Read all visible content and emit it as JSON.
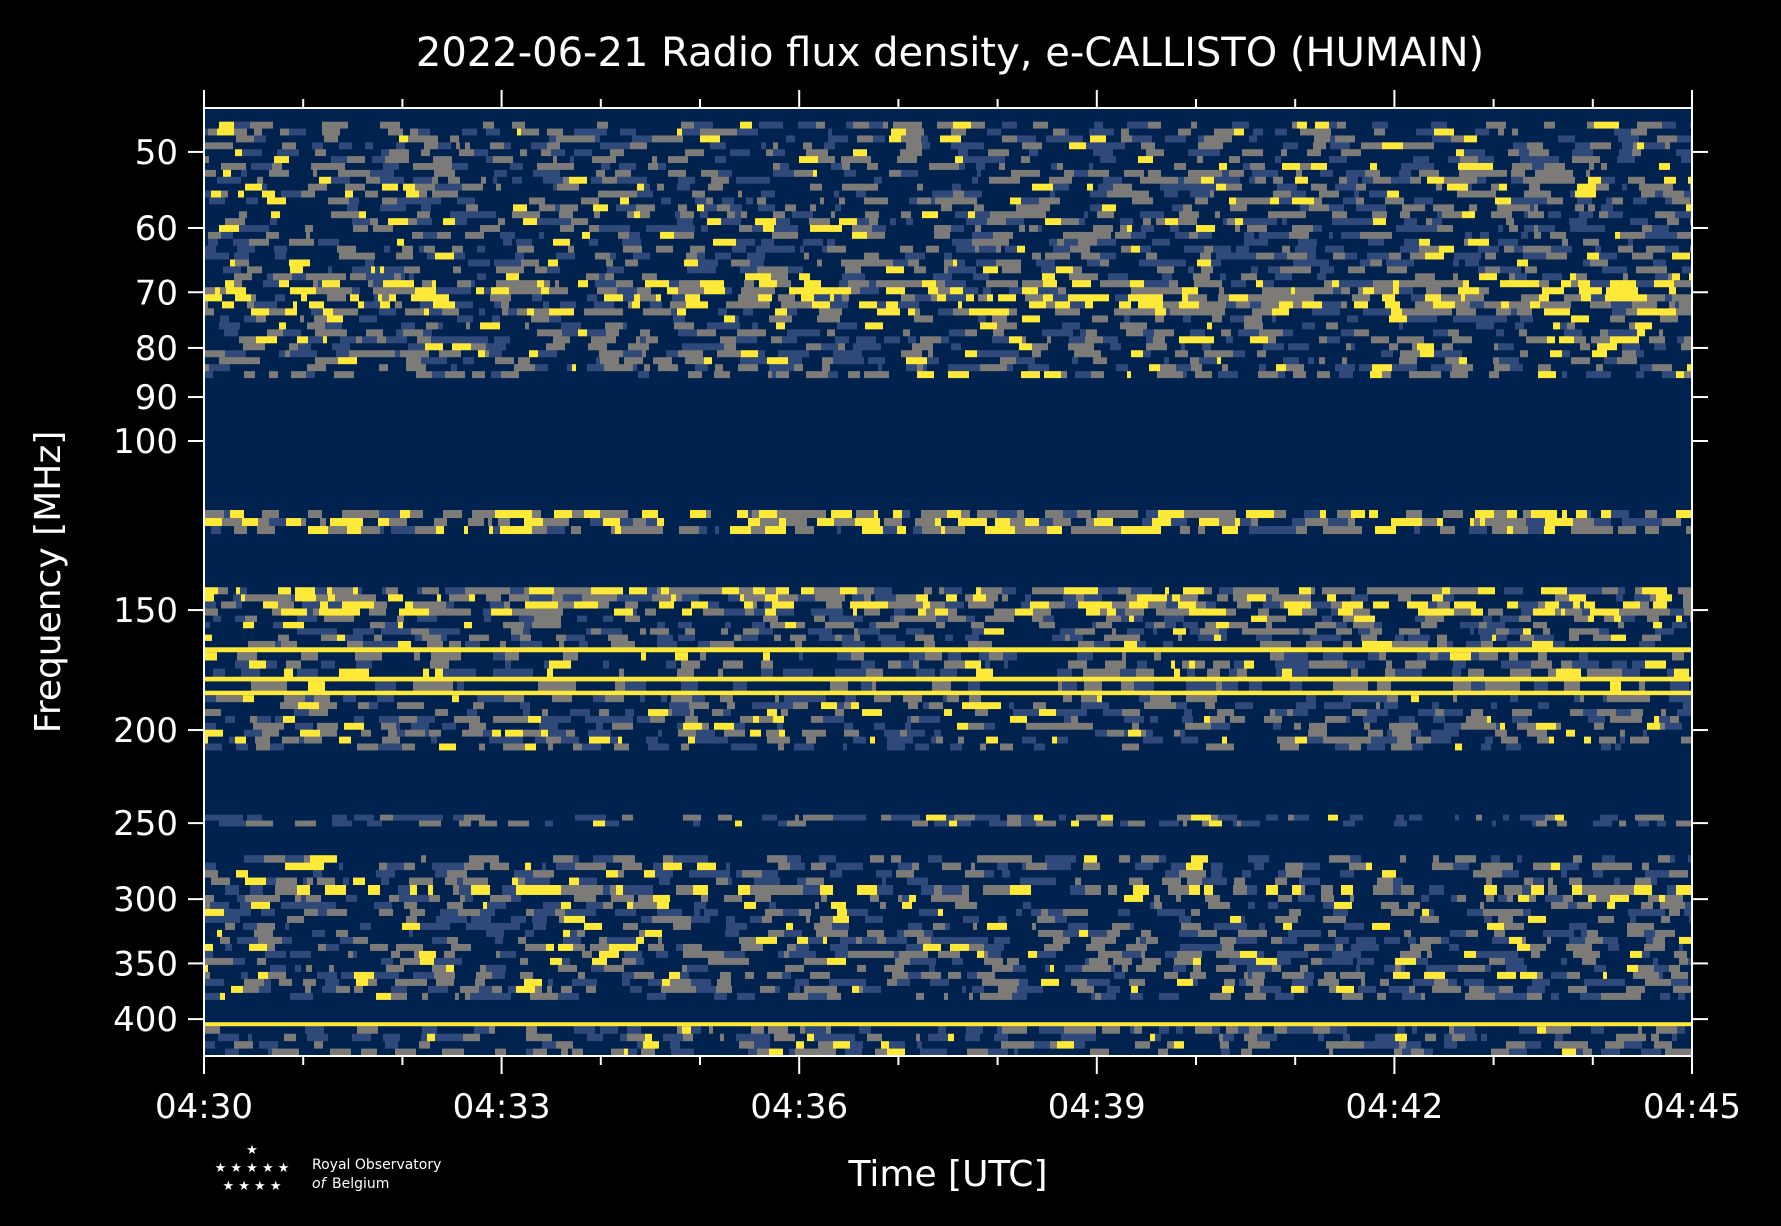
{
  "chart_data": {
    "type": "heatmap",
    "title": "2022-06-21 Radio flux density, e-CALLISTO (HUMAIN)",
    "xlabel": "Time [UTC]",
    "ylabel": "Frequency [MHz]",
    "x_ticks": [
      "04:30",
      "04:33",
      "04:36",
      "04:39",
      "04:42",
      "04:45"
    ],
    "x_range": [
      "04:30",
      "04:45"
    ],
    "y_ticks": [
      50,
      60,
      70,
      80,
      90,
      100,
      150,
      200,
      250,
      300,
      350,
      400
    ],
    "y_range": [
      45,
      437
    ],
    "y_scale": "log",
    "colormap": "cividis",
    "colors": {
      "background": "#000000",
      "low": "#00224e",
      "mid": "#7c7b78",
      "high": "#fee838",
      "axis": "#ffffff"
    },
    "bands": [
      {
        "f_lo": 45.5,
        "f_hi": 46.5,
        "level": "low"
      },
      {
        "f_lo": 46.5,
        "f_hi": 68,
        "level": "mixed"
      },
      {
        "f_lo": 68,
        "f_hi": 74,
        "level": "mixed-high"
      },
      {
        "f_lo": 74,
        "f_hi": 86,
        "level": "mixed"
      },
      {
        "f_lo": 86,
        "f_hi": 118,
        "level": "low"
      },
      {
        "f_lo": 118,
        "f_hi": 125,
        "level": "mixed-high"
      },
      {
        "f_lo": 125,
        "f_hi": 142,
        "level": "low"
      },
      {
        "f_lo": 142,
        "f_hi": 152,
        "level": "mixed-high"
      },
      {
        "f_lo": 152,
        "f_hi": 164,
        "level": "mixed"
      },
      {
        "f_lo": 164,
        "f_hi": 166,
        "level": "high"
      },
      {
        "f_lo": 166,
        "f_hi": 176,
        "level": "mixed"
      },
      {
        "f_lo": 176,
        "f_hi": 178,
        "level": "high"
      },
      {
        "f_lo": 178,
        "f_hi": 182,
        "level": "mixed"
      },
      {
        "f_lo": 182,
        "f_hi": 184,
        "level": "high"
      },
      {
        "f_lo": 184,
        "f_hi": 210,
        "level": "mixed"
      },
      {
        "f_lo": 210,
        "f_hi": 245,
        "level": "low"
      },
      {
        "f_lo": 245,
        "f_hi": 252,
        "level": "mixed"
      },
      {
        "f_lo": 252,
        "f_hi": 270,
        "level": "low"
      },
      {
        "f_lo": 270,
        "f_hi": 290,
        "level": "mixed"
      },
      {
        "f_lo": 290,
        "f_hi": 297,
        "level": "mixed-high"
      },
      {
        "f_lo": 297,
        "f_hi": 382,
        "level": "mixed"
      },
      {
        "f_lo": 382,
        "f_hi": 403,
        "level": "low"
      },
      {
        "f_lo": 403,
        "f_hi": 407,
        "level": "high"
      },
      {
        "f_lo": 407,
        "f_hi": 437,
        "level": "mixed"
      }
    ]
  },
  "logo": {
    "line1": "Royal Observatory",
    "line2_prefix": "of",
    "line2": "Belgium",
    "stars": [
      "★",
      "★ ★ ★ ★ ★",
      "★ ★ ★ ★"
    ]
  }
}
